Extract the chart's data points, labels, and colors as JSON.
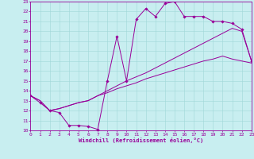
{
  "xlabel": "Windchill (Refroidissement éolien,°C)",
  "xlim": [
    0,
    23
  ],
  "ylim": [
    10,
    23
  ],
  "xticks": [
    0,
    1,
    2,
    3,
    4,
    5,
    6,
    7,
    8,
    9,
    10,
    11,
    12,
    13,
    14,
    15,
    16,
    17,
    18,
    19,
    20,
    21,
    22,
    23
  ],
  "yticks": [
    10,
    11,
    12,
    13,
    14,
    15,
    16,
    17,
    18,
    19,
    20,
    21,
    22,
    23
  ],
  "bg_color": "#c8eef0",
  "line_color": "#990099",
  "grid_color": "#a0d8d8",
  "line1_x": [
    0,
    1,
    2,
    3,
    4,
    5,
    6,
    7,
    8,
    9,
    10,
    11,
    12,
    13,
    14,
    15,
    16,
    17,
    18,
    19,
    20,
    21,
    22,
    23
  ],
  "line1_y": [
    13.5,
    12.8,
    12.0,
    11.8,
    10.5,
    10.5,
    10.4,
    10.1,
    15.0,
    19.5,
    15.0,
    21.2,
    22.3,
    21.5,
    22.8,
    23.0,
    21.5,
    21.5,
    21.5,
    21.0,
    21.0,
    20.8,
    20.2,
    17.0
  ],
  "line2_x": [
    0,
    1,
    2,
    3,
    4,
    5,
    6,
    7,
    8,
    9,
    10,
    11,
    12,
    13,
    14,
    15,
    16,
    17,
    18,
    19,
    20,
    21,
    22,
    23
  ],
  "line2_y": [
    13.5,
    13.0,
    12.0,
    12.2,
    12.5,
    12.8,
    13.0,
    13.5,
    14.0,
    14.5,
    15.0,
    15.4,
    15.8,
    16.3,
    16.8,
    17.3,
    17.8,
    18.3,
    18.8,
    19.3,
    19.8,
    20.3,
    20.0,
    17.0
  ],
  "line3_x": [
    0,
    1,
    2,
    3,
    4,
    5,
    6,
    7,
    8,
    9,
    10,
    11,
    12,
    13,
    14,
    15,
    16,
    17,
    18,
    19,
    20,
    21,
    22,
    23
  ],
  "line3_y": [
    13.5,
    13.0,
    12.0,
    12.2,
    12.5,
    12.8,
    13.0,
    13.5,
    13.8,
    14.2,
    14.5,
    14.8,
    15.2,
    15.5,
    15.8,
    16.1,
    16.4,
    16.7,
    17.0,
    17.2,
    17.5,
    17.2,
    17.0,
    16.8
  ]
}
